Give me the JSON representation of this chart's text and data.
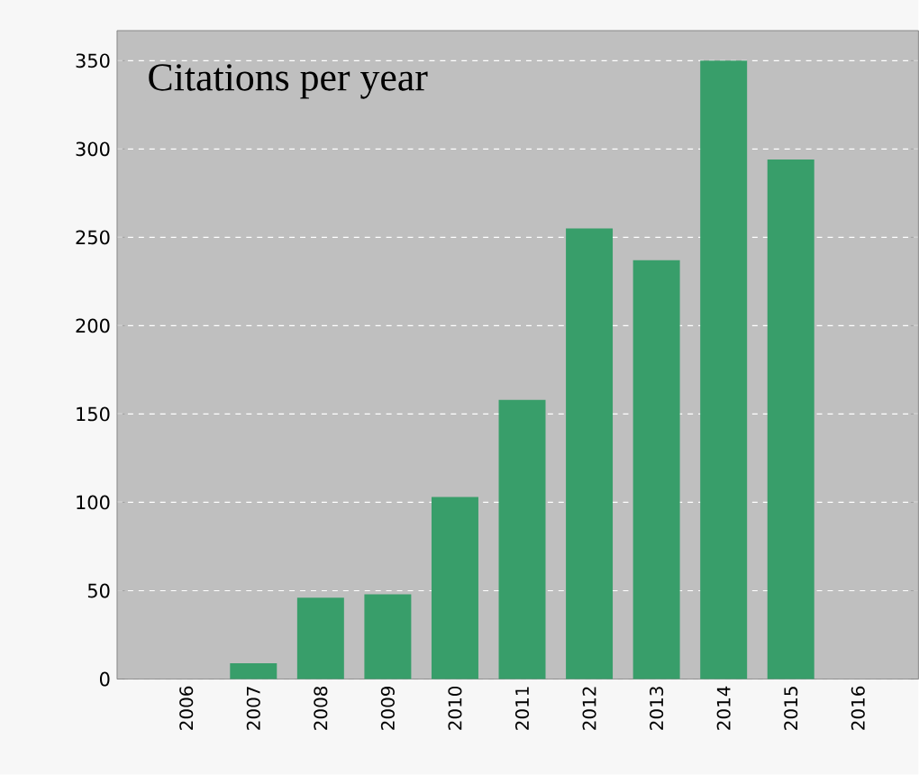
{
  "chart_data": {
    "type": "bar",
    "title": "Citations per year",
    "categories": [
      "2006",
      "2007",
      "2008",
      "2009",
      "2010",
      "2011",
      "2012",
      "2013",
      "2014",
      "2015",
      "2016"
    ],
    "values": [
      0,
      9,
      46,
      48,
      103,
      158,
      255,
      237,
      350,
      294,
      0
    ],
    "color": "#389e6a",
    "ylim": [
      0,
      367
    ],
    "yticks": [
      0,
      50,
      100,
      150,
      200,
      250,
      300,
      350
    ],
    "grid": "y"
  }
}
